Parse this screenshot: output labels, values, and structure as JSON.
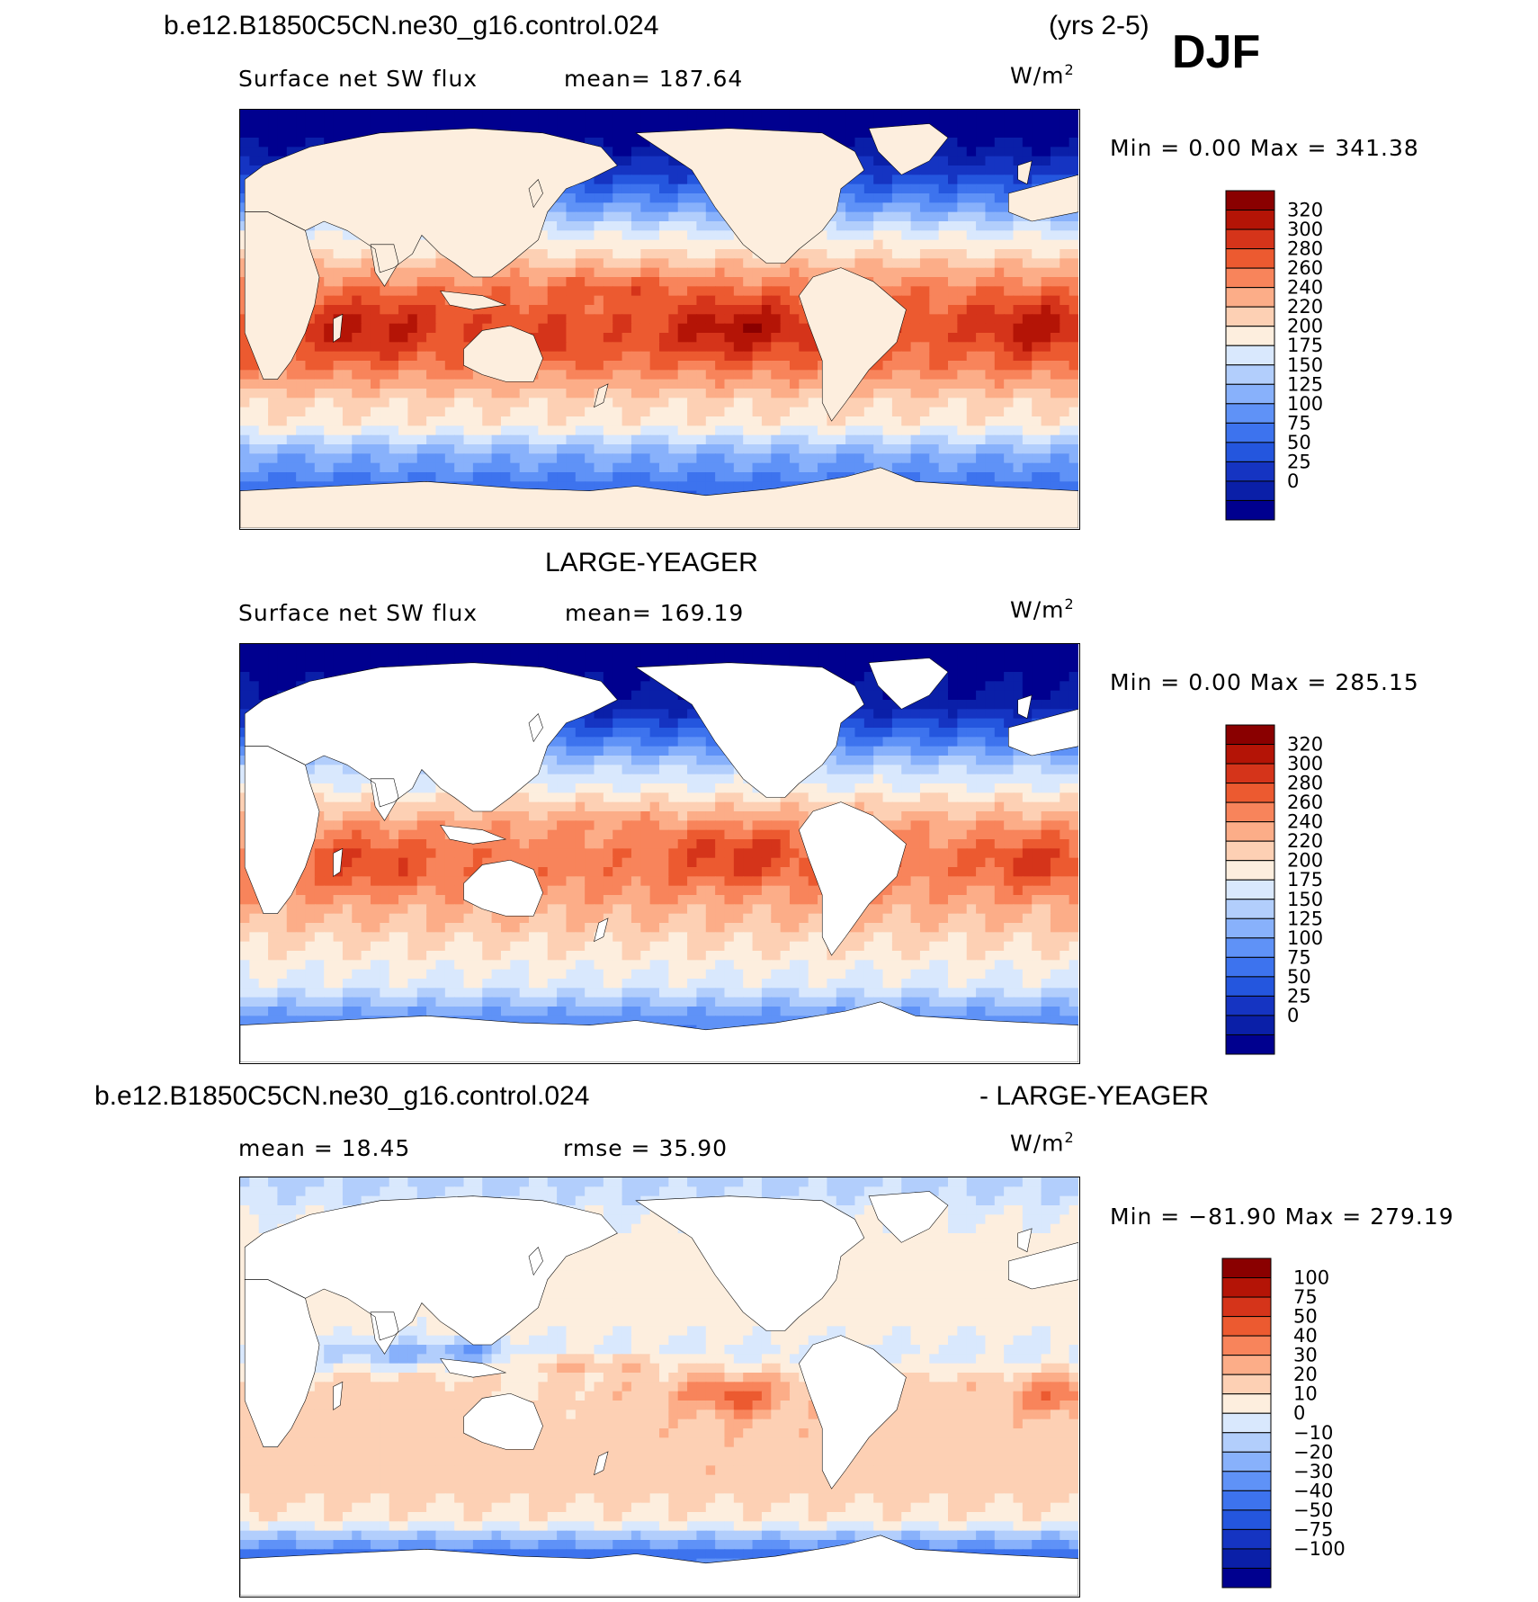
{
  "header": {
    "case_name": "b.e12.B1850C5CN.ne30_g16.control.024",
    "years": "(yrs 2-5)",
    "season": "DJF"
  },
  "panels": [
    {
      "id": "model",
      "title": "",
      "variable": "Surface net SW flux",
      "stat": "mean=  187.64",
      "units": "W/m",
      "units_sup": "2",
      "minmax": "Min =     0.00 Max = 341.38",
      "mask_land": false,
      "colors": [
        "#00008f",
        "#0a1fa8",
        "#1534c2",
        "#2456de",
        "#3d73ee",
        "#5f92f7",
        "#88b1fb",
        "#b2cefc",
        "#d9e8fd",
        "#fdeede",
        "#fdd0b4",
        "#fcad88",
        "#f8845b",
        "#ec5a30",
        "#d5341a",
        "#b41406",
        "#8a0000"
      ],
      "labels": [
        "0",
        "25",
        "50",
        "75",
        "100",
        "125",
        "150",
        "175",
        "200",
        "220",
        "240",
        "260",
        "280",
        "300",
        "320"
      ]
    },
    {
      "id": "obs",
      "title": "LARGE-YEAGER",
      "variable": "Surface net SW flux",
      "stat": "mean=  169.19",
      "units": "W/m",
      "units_sup": "2",
      "minmax": "Min =     0.00 Max = 285.15",
      "mask_land": true,
      "colors": [
        "#00008f",
        "#0a1fa8",
        "#1534c2",
        "#2456de",
        "#3d73ee",
        "#5f92f7",
        "#88b1fb",
        "#b2cefc",
        "#d9e8fd",
        "#fdeede",
        "#fdd0b4",
        "#fcad88",
        "#f8845b",
        "#ec5a30",
        "#d5341a",
        "#b41406",
        "#8a0000"
      ],
      "labels": [
        "0",
        "25",
        "50",
        "75",
        "100",
        "125",
        "150",
        "175",
        "200",
        "220",
        "240",
        "260",
        "280",
        "300",
        "320"
      ]
    },
    {
      "id": "diff",
      "title_left": "b.e12.B1850C5CN.ne30_g16.control.024",
      "title_right": "- LARGE-YEAGER",
      "stat_mean": "mean =   18.45",
      "stat_rmse": "rmse =   35.90",
      "units": "W/m",
      "units_sup": "2",
      "minmax": "Min = −81.90 Max = 279.19",
      "mask_land": true,
      "colors": [
        "#00008f",
        "#0a1fa8",
        "#1534c2",
        "#2456de",
        "#3d73ee",
        "#5f92f7",
        "#88b1fb",
        "#b2cefc",
        "#d9e8fd",
        "#fdeede",
        "#fdd0b4",
        "#fcad88",
        "#f8845b",
        "#ec5a30",
        "#d5341a",
        "#b41406",
        "#8a0000"
      ],
      "labels": [
        "−100",
        "−75",
        "−50",
        "−40",
        "−30",
        "−20",
        "−10",
        "0",
        "10",
        "20",
        "30",
        "40",
        "50",
        "75",
        "100"
      ]
    }
  ]
}
